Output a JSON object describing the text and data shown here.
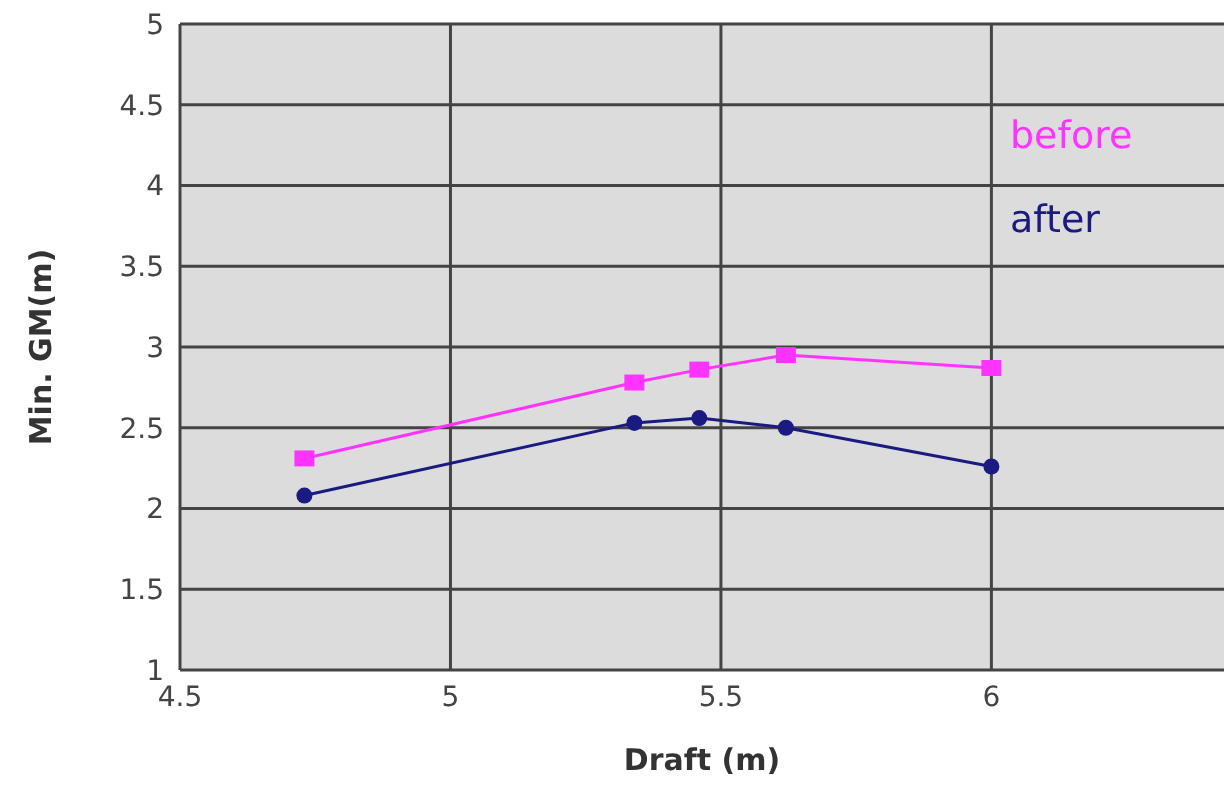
{
  "chart_data": {
    "type": "line",
    "xlabel": "Draft (m)",
    "ylabel": "Min. GM(m)",
    "xlim": [
      4.5,
      6.43
    ],
    "xticks": [
      4.5,
      5,
      5.5,
      6
    ],
    "ylim": [
      1,
      5
    ],
    "yticks": [
      1,
      1.5,
      2,
      2.5,
      3,
      3.5,
      4,
      4.5,
      5
    ],
    "grid": true,
    "legend": "top right",
    "series": [
      {
        "name": "before",
        "color": "#ff33ff",
        "marker": "square",
        "x": [
          4.73,
          5.34,
          5.46,
          5.62,
          6.0
        ],
        "values": [
          2.31,
          2.78,
          2.86,
          2.95,
          2.87
        ]
      },
      {
        "name": "after",
        "color": "#1a1a80",
        "marker": "circle",
        "x": [
          4.73,
          5.34,
          5.46,
          5.62,
          6.0
        ],
        "values": [
          2.08,
          2.53,
          2.56,
          2.5,
          2.26
        ]
      }
    ]
  }
}
